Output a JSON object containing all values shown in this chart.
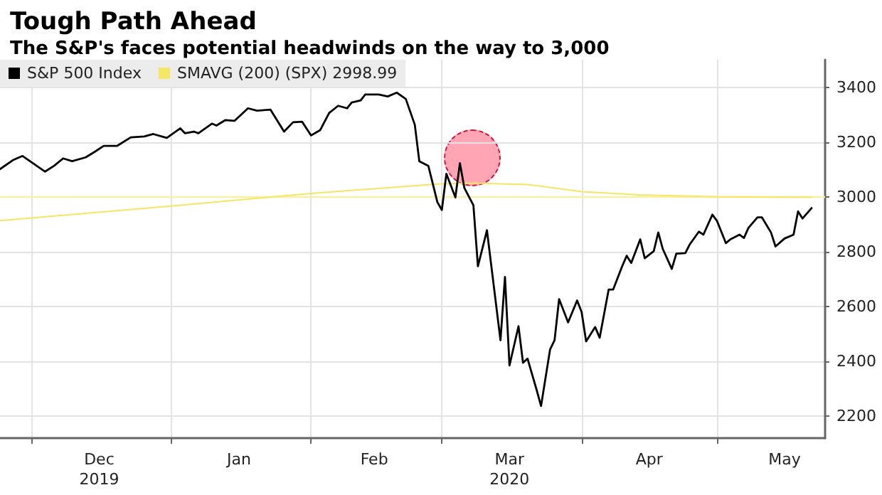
{
  "chart_data": {
    "type": "line",
    "title": "Tough Path Ahead",
    "subtitle": "The S&P's faces potential headwinds on the way to 3,000",
    "xlim": [
      "2019-11-24",
      "2020-05-25"
    ],
    "xticks": [
      {
        "value": "2019-12-01",
        "label": null
      },
      {
        "value": "2020-01-01",
        "label": null
      },
      {
        "value": "2020-02-01",
        "label": null
      },
      {
        "value": "2020-03-01",
        "label": null
      },
      {
        "value": "2020-04-01",
        "label": null
      },
      {
        "value": "2020-05-01",
        "label": null
      },
      {
        "value": "2019-12-16",
        "label": "Dec\n2019"
      },
      {
        "value": "2020-01-16",
        "label": "Jan"
      },
      {
        "value": "2020-02-15",
        "label": "Feb"
      },
      {
        "value": "2020-03-16",
        "label": "Mar\n2020"
      },
      {
        "value": "2020-04-16",
        "label": "Apr"
      },
      {
        "value": "2020-05-16",
        "label": "May"
      }
    ],
    "ylim": [
      2120,
      3500
    ],
    "yticks": [
      2200,
      2400,
      2600,
      2800,
      3000,
      3200,
      3400
    ],
    "grid": true,
    "legend": "top left",
    "marker": "none",
    "line_style": "solid",
    "ref_lines": [
      {
        "axis": "y",
        "value": 2998.99,
        "color": "#f7f0a8"
      }
    ],
    "series": [
      {
        "name": "S&P 500 Index",
        "color": "#000000",
        "x": [
          "2019-11-24",
          "2019-11-27",
          "2019-11-29",
          "2019-12-04",
          "2019-12-06",
          "2019-12-08",
          "2019-12-10",
          "2019-12-13",
          "2019-12-15",
          "2019-12-17",
          "2019-12-20",
          "2019-12-23",
          "2019-12-26",
          "2019-12-28",
          "2019-12-31",
          "2020-01-03",
          "2020-01-04",
          "2020-01-06",
          "2020-01-07",
          "2020-01-10",
          "2020-01-11",
          "2020-01-13",
          "2020-01-15",
          "2020-01-18",
          "2020-01-20",
          "2020-01-23",
          "2020-01-26",
          "2020-01-28",
          "2020-01-30",
          "2020-02-01",
          "2020-02-03",
          "2020-02-05",
          "2020-02-07",
          "2020-02-09",
          "2020-02-10",
          "2020-02-12",
          "2020-02-13",
          "2020-02-16",
          "2020-02-18",
          "2020-02-20",
          "2020-02-22",
          "2020-02-24",
          "2020-02-25",
          "2020-02-27",
          "2020-02-29",
          "2020-03-01",
          "2020-03-02",
          "2020-03-04",
          "2020-03-05",
          "2020-03-06",
          "2020-03-08",
          "2020-03-09",
          "2020-03-11",
          "2020-03-12",
          "2020-03-14",
          "2020-03-15",
          "2020-03-16",
          "2020-03-18",
          "2020-03-19",
          "2020-03-20",
          "2020-03-22",
          "2020-03-23",
          "2020-03-25",
          "2020-03-26",
          "2020-03-27",
          "2020-03-29",
          "2020-03-31",
          "2020-04-01",
          "2020-04-02",
          "2020-04-04",
          "2020-04-05",
          "2020-04-07",
          "2020-04-08",
          "2020-04-10",
          "2020-04-11",
          "2020-04-12",
          "2020-04-14",
          "2020-04-15",
          "2020-04-17",
          "2020-04-18",
          "2020-04-19",
          "2020-04-21",
          "2020-04-22",
          "2020-04-24",
          "2020-04-25",
          "2020-04-27",
          "2020-04-28",
          "2020-04-30",
          "2020-05-01",
          "2020-05-03",
          "2020-05-04",
          "2020-05-06",
          "2020-05-07",
          "2020-05-08",
          "2020-05-10",
          "2020-05-11",
          "2020-05-13",
          "2020-05-14",
          "2020-05-16",
          "2020-05-18",
          "2020-05-19",
          "2020-05-20",
          "2020-05-22"
        ],
        "values": [
          3101,
          3135,
          3149,
          3092,
          3113,
          3140,
          3130,
          3144,
          3164,
          3186,
          3186,
          3217,
          3220,
          3229,
          3215,
          3250,
          3232,
          3238,
          3232,
          3267,
          3260,
          3280,
          3277,
          3323,
          3314,
          3318,
          3238,
          3272,
          3274,
          3224,
          3243,
          3306,
          3332,
          3323,
          3344,
          3352,
          3373,
          3373,
          3366,
          3380,
          3357,
          3263,
          3130,
          3113,
          2981,
          2952,
          3084,
          2998,
          3123,
          3032,
          2969,
          2747,
          2878,
          2744,
          2477,
          2708,
          2385,
          2528,
          2395,
          2410,
          2297,
          2237,
          2443,
          2477,
          2627,
          2542,
          2622,
          2580,
          2473,
          2525,
          2486,
          2662,
          2662,
          2747,
          2785,
          2759,
          2845,
          2776,
          2802,
          2870,
          2810,
          2737,
          2793,
          2795,
          2827,
          2873,
          2862,
          2935,
          2913,
          2831,
          2845,
          2862,
          2850,
          2887,
          2925,
          2925,
          2870,
          2819,
          2848,
          2862,
          2947,
          2921,
          2959
        ]
      },
      {
        "name": "SMAVG (200) (SPX) 2998.99",
        "color": "#f5e663",
        "x": [
          "2019-11-24",
          "2019-12-31",
          "2020-01-31",
          "2020-02-29",
          "2020-03-08",
          "2020-03-20",
          "2020-04-01",
          "2020-04-14",
          "2020-05-01",
          "2020-05-22"
        ],
        "values": [
          2913,
          2965,
          3011,
          3047,
          3050,
          3045,
          3019,
          3007,
          3000,
          2999
        ]
      }
    ]
  }
}
